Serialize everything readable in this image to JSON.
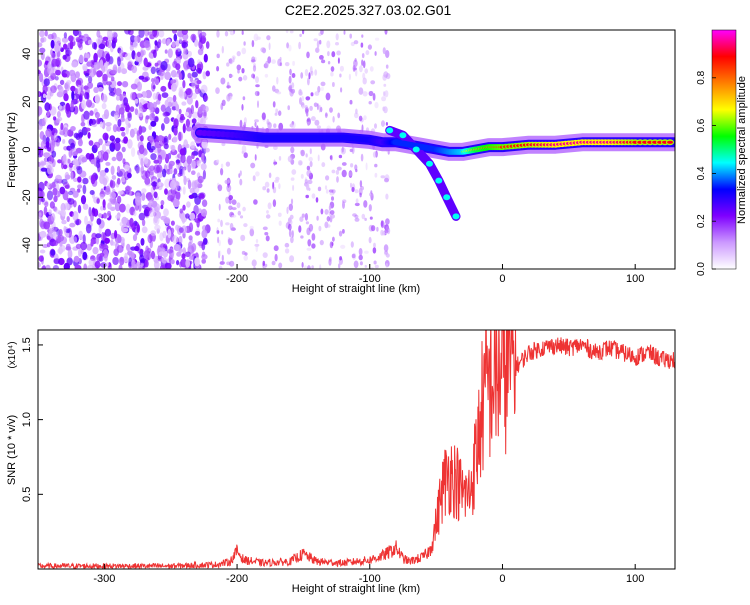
{
  "title": "C2E2.2025.327.03.02.G01",
  "chart_data": [
    {
      "type": "heatmap",
      "xlabel": "Height of straight line (km)",
      "ylabel": "Frequency (Hz)",
      "xlim": [
        -350,
        130
      ],
      "ylim": [
        -50,
        50
      ],
      "xticks": [
        -300,
        -200,
        -100,
        0,
        100
      ],
      "yticks": [
        -40,
        -20,
        0,
        20,
        40
      ],
      "colorbar": {
        "label": "Normalized spectral amplitude",
        "range": [
          0,
          1
        ],
        "ticks": [
          "0.0",
          "0.2",
          "0.4",
          "0.6",
          "0.8"
        ],
        "colors": [
          "#ffffff",
          "#cc99ff",
          "#7f00ff",
          "#0000ff",
          "#00ffff",
          "#00ff00",
          "#ffff00",
          "#ff7f00",
          "#ff0000",
          "#ff00ff"
        ]
      },
      "ridge": {
        "name": "",
        "x": [
          -228,
          -200,
          -180,
          -160,
          -140,
          -120,
          -100,
          -90,
          -80,
          -70,
          -60,
          -50,
          -40,
          -30,
          -20,
          -10,
          0,
          20,
          40,
          60,
          80,
          100,
          130
        ],
        "y": [
          7,
          6,
          5,
          5,
          5,
          5,
          4,
          3,
          3,
          2,
          1,
          0,
          -1,
          -1,
          0,
          1,
          1,
          2,
          2,
          3,
          3,
          3,
          3
        ],
        "amplitude": [
          0.35,
          0.4,
          0.45,
          0.45,
          0.45,
          0.45,
          0.45,
          0.4,
          0.5,
          0.5,
          0.5,
          0.5,
          0.55,
          0.6,
          0.75,
          0.8,
          0.85,
          0.9,
          0.95,
          0.95,
          0.95,
          0.9,
          0.9
        ]
      },
      "branch": {
        "name": "",
        "x": [
          -85,
          -75,
          -65,
          -55,
          -48,
          -42,
          -35
        ],
        "y": [
          8,
          6,
          0,
          -6,
          -13,
          -20,
          -28
        ]
      }
    },
    {
      "type": "line",
      "xlabel": "Height of straight line (km)",
      "ylabel": "SNR (10 * v/v)",
      "scale_label": "(x10⁴)",
      "xlim": [
        -350,
        130
      ],
      "ylim": [
        0,
        1.6
      ],
      "xticks": [
        -300,
        -200,
        -100,
        0,
        100
      ],
      "yticks": [
        0.5,
        1.0,
        1.5
      ],
      "color": "#ee3333",
      "series": [
        {
          "name": "",
          "x": [
            -350,
            -300,
            -250,
            -215,
            -205,
            -200,
            -195,
            -180,
            -160,
            -150,
            -140,
            -120,
            -100,
            -90,
            -80,
            -75,
            -70,
            -60,
            -55,
            -50,
            -45,
            -40,
            -35,
            -30,
            -25,
            -20,
            -15,
            -10,
            -5,
            0,
            5,
            10,
            20,
            30,
            40,
            50,
            60,
            70,
            80,
            90,
            100,
            110,
            120,
            130
          ],
          "y": [
            0.02,
            0.02,
            0.02,
            0.03,
            0.05,
            0.12,
            0.06,
            0.04,
            0.05,
            0.1,
            0.05,
            0.04,
            0.06,
            0.09,
            0.14,
            0.07,
            0.05,
            0.08,
            0.12,
            0.3,
            0.55,
            0.65,
            0.6,
            0.5,
            0.5,
            0.75,
            1.1,
            1.25,
            1.3,
            1.35,
            1.4,
            1.35,
            1.45,
            1.48,
            1.5,
            1.48,
            1.5,
            1.45,
            1.48,
            1.45,
            1.42,
            1.45,
            1.4,
            1.4
          ]
        }
      ]
    }
  ]
}
